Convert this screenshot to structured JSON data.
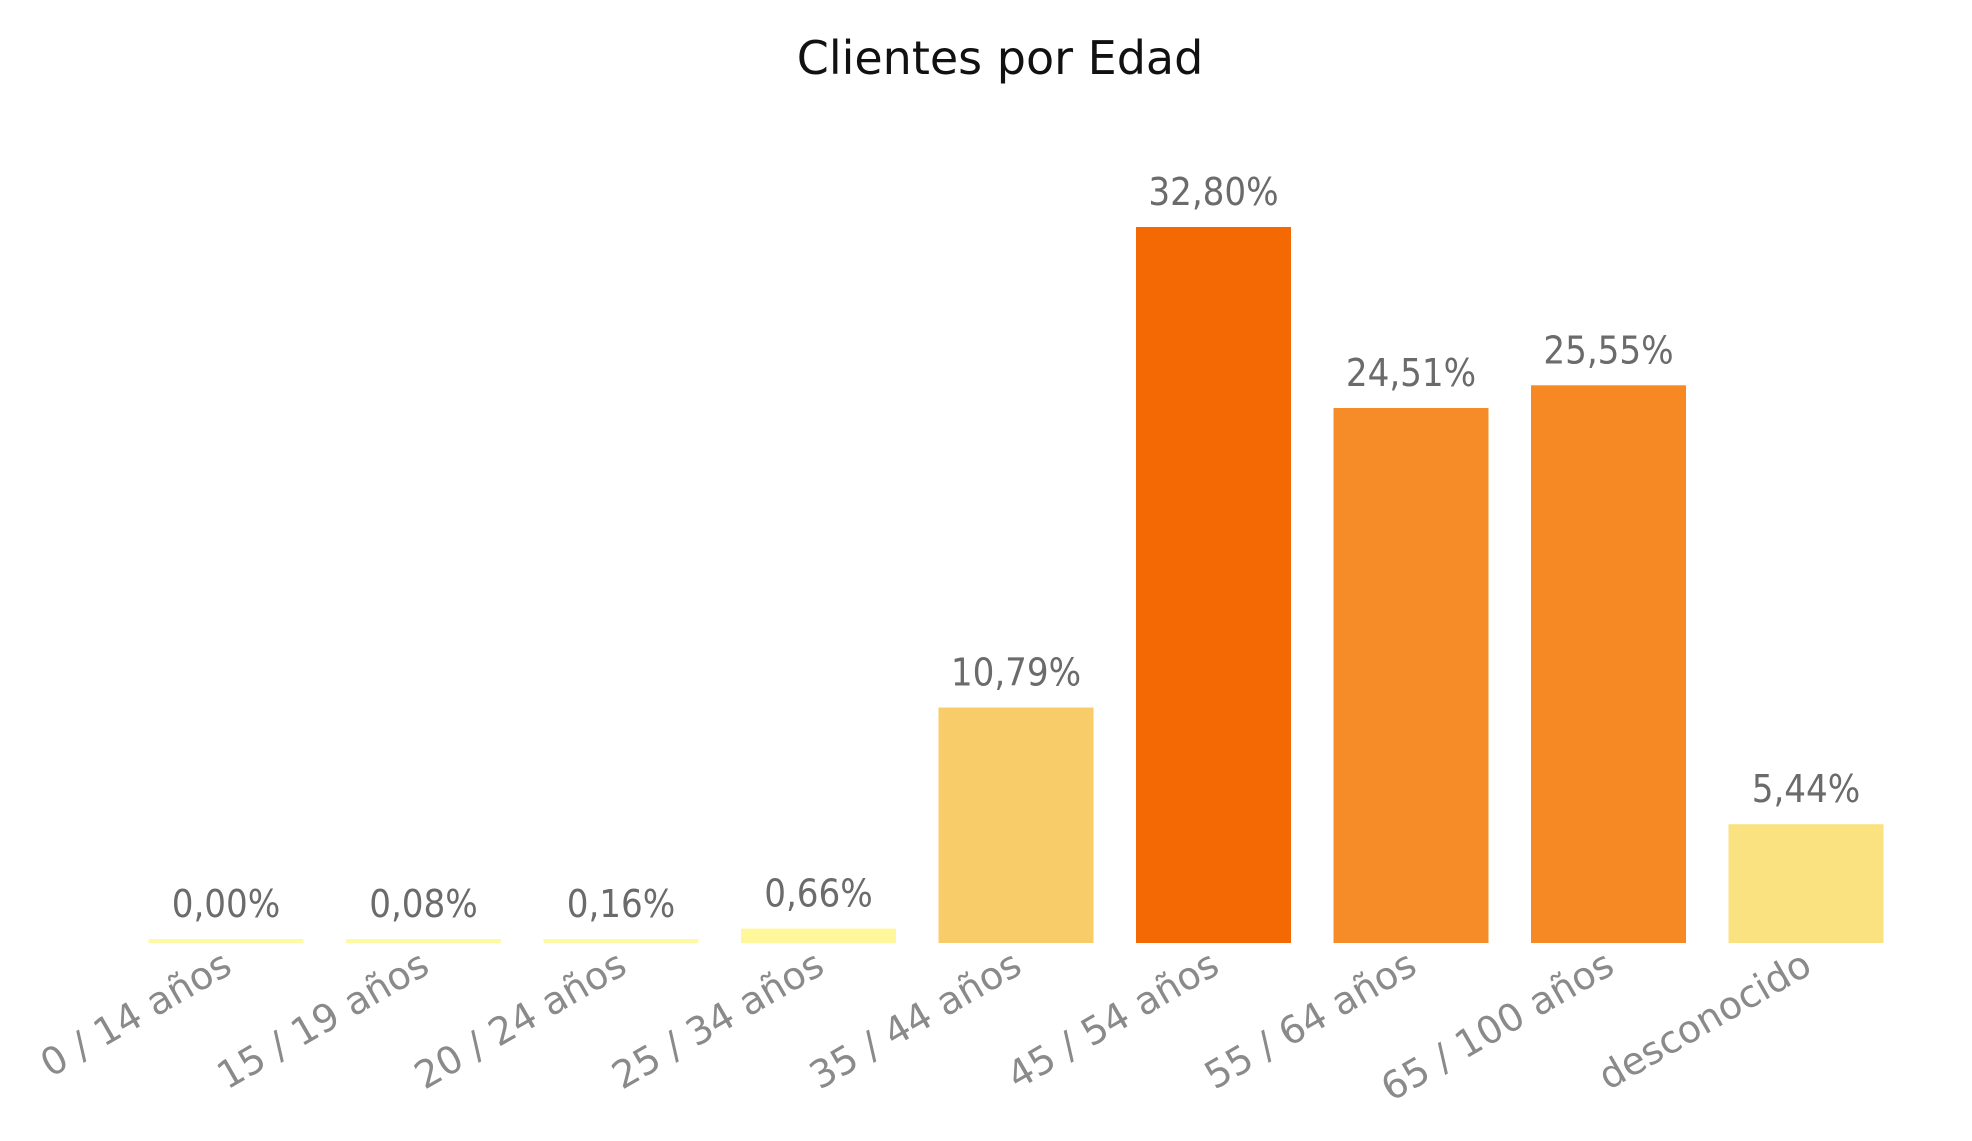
{
  "chart_data": {
    "type": "bar",
    "title": "Clientes por Edad",
    "xlabel": "",
    "ylabel": "",
    "categories": [
      "0 / 14 años",
      "15 / 19 años",
      "20 / 24 años",
      "25 / 34 años",
      "35 / 44 años",
      "45 / 54 años",
      "55 / 64 años",
      "65 / 100 años",
      "desconocido"
    ],
    "values": [
      0.0,
      0.08,
      0.16,
      0.66,
      10.79,
      32.8,
      24.51,
      25.55,
      5.44
    ],
    "value_labels": [
      "0,00%",
      "0,08%",
      "0,16%",
      "0,66%",
      "10,79%",
      "32,80%",
      "24,51%",
      "25,55%",
      "5,44%"
    ],
    "colors": [
      "#fff9a3",
      "#fff9a3",
      "#fff9a3",
      "#fff79a",
      "#f9cc6a",
      "#f46904",
      "#f68c28",
      "#f68924",
      "#fbe281"
    ],
    "ylim": [
      0,
      32.8
    ],
    "grid": false,
    "legend": "none"
  }
}
